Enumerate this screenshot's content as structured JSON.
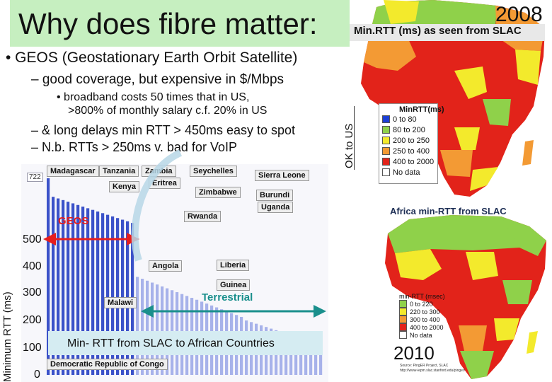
{
  "slide": {
    "title": "Why does fibre matter:",
    "bullet_main": "• GEOS (Geostationary Earth Orbit Satellite)",
    "sub_bullet_coverage": "– good coverage, but expensive in $/Mbps",
    "detail_line1": "• broadband costs 50 times that in US,",
    "detail_line2": ">800% of monthly salary  c.f. 20% in US",
    "sub_bullet_delays": "– & long delays min RTT > 450ms  easy to spot",
    "sub_bullet_voip": "– N.b. RTTs > 250ms v. bad for VoIP",
    "ok_to_us": "OK to US"
  },
  "chart": {
    "y_axis_label": "Minimum RTT (ms)",
    "y_ticks": [
      "500",
      "400",
      "300",
      "200",
      "100",
      "0"
    ],
    "geos_label": "GEOS",
    "terrestrial_label": "Terrestrial",
    "caption": "Min- RTT from SLAC to African Countries",
    "value_722": "722",
    "countries": [
      "Madagascar",
      "Tanzania",
      "Zambia",
      "Seychelles",
      "Sierra Leone",
      "Kenya",
      "Eritrea",
      "Zimbabwe",
      "Burundi",
      "Uganda",
      "Rwanda",
      "Angola",
      "Liberia",
      "Guinea",
      "Malawi",
      "Democratic Republic of Congo"
    ]
  },
  "map2008": {
    "year": "2008",
    "title": "Min.RTT (ms) as seen from SLAC",
    "legend_title": "MinRTT(ms)",
    "legend": [
      {
        "label": "0 to 80",
        "color": "#1c3fd6"
      },
      {
        "label": "80 to 200",
        "color": "#8fd14a"
      },
      {
        "label": "200 to 250",
        "color": "#f3ea2c"
      },
      {
        "label": "250 to 400",
        "color": "#f39a34"
      },
      {
        "label": "400 to 2000",
        "color": "#e2231a"
      },
      {
        "label": "No data",
        "color": "#ffffff"
      }
    ]
  },
  "map2010": {
    "year": "2010",
    "title": "Africa min-RTT from SLAC",
    "legend_title": "min-RTT (msec)",
    "legend": [
      {
        "label": "0 to 220",
        "color": "#8fd14a"
      },
      {
        "label": "220 to 300",
        "color": "#f3ea2c"
      },
      {
        "label": "300 to 400",
        "color": "#f39a34"
      },
      {
        "label": "400 to 2000",
        "color": "#e2231a"
      },
      {
        "label": "No data",
        "color": "#ffffff"
      }
    ],
    "source_line1": "Source: PingER Project, SLAC",
    "source_line2": "http://www-iepm.slac.stanford.edu/pinger/"
  }
}
